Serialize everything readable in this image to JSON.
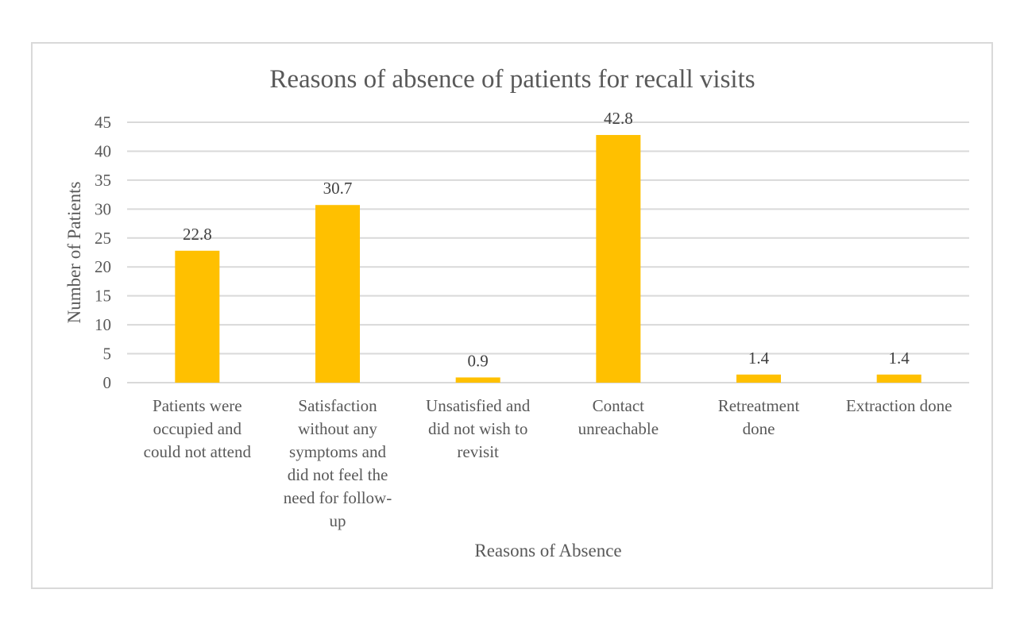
{
  "chart_data": {
    "type": "bar",
    "title": "Reasons of absence of patients for recall visits",
    "xlabel": "Reasons of Absence",
    "ylabel": "Number of Patients",
    "categories": [
      "Patients were occupied and could not attend",
      "Satisfaction without any symptoms and did not feel the need for follow-up",
      "Unsatisfied and did not wish to revisit",
      "Contact unreachable",
      "Retreatment done",
      "Extraction done"
    ],
    "category_lines": [
      [
        "Patients were",
        "occupied and",
        "could not attend"
      ],
      [
        "Satisfaction",
        "without any",
        "symptoms and",
        "did not feel the",
        "need for follow-",
        "up"
      ],
      [
        "Unsatisfied and",
        "did not wish to",
        "revisit"
      ],
      [
        "Contact",
        "unreachable"
      ],
      [
        "Retreatment",
        "done"
      ],
      [
        "Extraction done"
      ]
    ],
    "values": [
      22.8,
      30.7,
      0.9,
      42.8,
      1.4,
      1.4
    ],
    "data_labels": [
      "22.8",
      "30.7",
      "0.9",
      "42.8",
      "1.4",
      "1.4"
    ],
    "ylim": [
      0,
      45
    ],
    "yticks": [
      0,
      5,
      10,
      15,
      20,
      25,
      30,
      35,
      40,
      45
    ],
    "grid": true,
    "legend": "none",
    "bar_color": "#ffc000",
    "grid_color": "#d9d9d9"
  }
}
